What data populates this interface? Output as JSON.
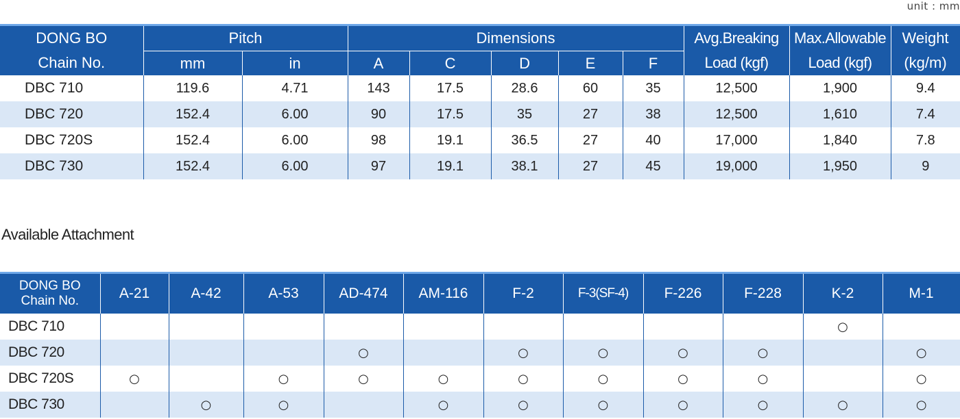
{
  "unit_label": "unit : mm",
  "spec_table": {
    "header": {
      "chain_no_line1": "DONG BO",
      "chain_no_line2": "Chain No.",
      "pitch": "Pitch",
      "pitch_mm": "mm",
      "pitch_in": "in",
      "dimensions": "Dimensions",
      "dim_a": "A",
      "dim_c": "C",
      "dim_d": "D",
      "dim_e": "E",
      "dim_f": "F",
      "avg_breaking_line1": "Avg.Breaking",
      "avg_breaking_line2": "Load (kgf)",
      "max_allowable_line1": "Max.Allowable",
      "max_allowable_line2": "Load (kgf)",
      "weight_line1": "Weight",
      "weight_line2": "(kg/m)"
    },
    "rows": [
      {
        "chain": "DBC  710",
        "mm": "119.6",
        "in": "4.71",
        "a": "143",
        "c": "17.5",
        "d": "28.6",
        "e": "60",
        "f": "35",
        "avg": "12,500",
        "max": "1,900",
        "weight": "9.4"
      },
      {
        "chain": "DBC  720",
        "mm": "152.4",
        "in": "6.00",
        "a": "90",
        "c": "17.5",
        "d": "35",
        "e": "27",
        "f": "38",
        "avg": "12,500",
        "max": "1,610",
        "weight": "7.4"
      },
      {
        "chain": "DBC  720S",
        "mm": "152.4",
        "in": "6.00",
        "a": "98",
        "c": "19.1",
        "d": "36.5",
        "e": "27",
        "f": "40",
        "avg": "17,000",
        "max": "1,840",
        "weight": "7.8"
      },
      {
        "chain": "DBC  730",
        "mm": "152.4",
        "in": "6.00",
        "a": "97",
        "c": "19.1",
        "d": "38.1",
        "e": "27",
        "f": "45",
        "avg": "19,000",
        "max": "1,950",
        "weight": "9"
      }
    ]
  },
  "attachment_section_title": "Available Attachment",
  "attachment_table": {
    "header": {
      "chain_no_line1": "DONG BO",
      "chain_no_line2": "Chain No.",
      "columns": [
        "A-21",
        "A-42",
        "A-53",
        "AD-474",
        "AM-116",
        "F-2",
        "F-3(SF-4)",
        "F-226",
        "F-228",
        "K-2",
        "M-1"
      ]
    },
    "mark_symbol": "○",
    "rows": [
      {
        "chain": "DBC 710",
        "marks": [
          "",
          "",
          "",
          "",
          "",
          "",
          "",
          "",
          "",
          "○",
          ""
        ]
      },
      {
        "chain": "DBC 720",
        "marks": [
          "",
          "",
          "",
          "○",
          "",
          "○",
          "○",
          "○",
          "○",
          "",
          "○"
        ]
      },
      {
        "chain": "DBC 720S",
        "marks": [
          "○",
          "",
          "○",
          "○",
          "○",
          "○",
          "○",
          "○",
          "○",
          "",
          "○"
        ]
      },
      {
        "chain": "DBC 730",
        "marks": [
          "",
          "○",
          "○",
          "",
          "○",
          "○",
          "○",
          "○",
          "○",
          "○",
          "○"
        ]
      }
    ]
  },
  "colors": {
    "header_blue": "#1a5aa8",
    "accent_line": "#6fa8e8",
    "alt_row": "#dae7f6"
  }
}
